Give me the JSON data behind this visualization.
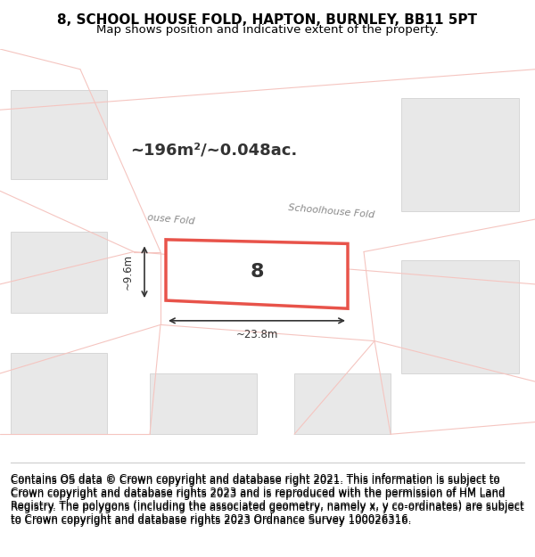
{
  "title_line1": "8, SCHOOL HOUSE FOLD, HAPTON, BURNLEY, BB11 5PT",
  "title_line2": "Map shows position and indicative extent of the property.",
  "footer_text": "Contains OS data © Crown copyright and database right 2021. This information is subject to Crown copyright and database rights 2023 and is reproduced with the permission of HM Land Registry. The polygons (including the associated geometry, namely x, y co-ordinates) are subject to Crown copyright and database rights 2023 Ordnance Survey 100026316.",
  "area_text": "~196m²/~0.048ac.",
  "property_number": "8",
  "dim_width": "~23.8m",
  "dim_height": "~9.6m",
  "street_label_1": "Schoolhouse Fold",
  "street_label_2": "ouse Fold",
  "map_bg": "#f5f5f5",
  "plot_bg": "#ffffff",
  "property_fill": "#ffffff",
  "property_edge": "#e8534a",
  "road_color": "#f5c5c0",
  "building_fill": "#e8e8e8",
  "building_edge": "#cccccc",
  "dim_color": "#333333",
  "title_fontsize": 11,
  "footer_fontsize": 8.5,
  "map_xlim": [
    0,
    1
  ],
  "map_ylim": [
    0,
    1
  ]
}
